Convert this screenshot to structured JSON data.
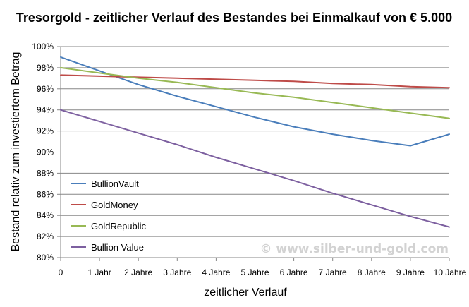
{
  "chart_data": {
    "type": "line",
    "title": "Tresorgold - zeitlicher Verlauf des Bestandes bei Einmalkauf von € 5.000",
    "xlabel": "zeitlicher Verlauf",
    "ylabel": "Bestand relativ zum investiertem Betrag",
    "categories": [
      "0",
      "1 Jahr",
      "2 Jahre",
      "3 Jahre",
      "4 Jahre",
      "5 Jahre",
      "6 Jahre",
      "7 Jahre",
      "8 Jahre",
      "9 Jahre",
      "10 Jahre"
    ],
    "x": [
      0,
      1,
      2,
      3,
      4,
      5,
      6,
      7,
      8,
      9,
      10
    ],
    "ylim": [
      80,
      100
    ],
    "ytick_step": 2,
    "ytick_labels": [
      "80%",
      "82%",
      "84%",
      "86%",
      "88%",
      "90%",
      "92%",
      "94%",
      "96%",
      "98%",
      "100%"
    ],
    "grid": "horizontal",
    "legend_position": "inside-bottom-left",
    "series": [
      {
        "name": "BullionVault",
        "color": "#4a7ebb",
        "values": [
          99.0,
          97.7,
          96.4,
          95.3,
          94.3,
          93.3,
          92.4,
          91.7,
          91.1,
          90.6,
          91.7
        ]
      },
      {
        "name": "GoldMoney",
        "color": "#be4b48",
        "values": [
          97.3,
          97.2,
          97.1,
          97.0,
          96.9,
          96.8,
          96.7,
          96.5,
          96.4,
          96.2,
          96.1
        ]
      },
      {
        "name": "GoldRepublic",
        "color": "#98b954",
        "values": [
          98.0,
          97.5,
          97.0,
          96.6,
          96.1,
          95.6,
          95.2,
          94.7,
          94.2,
          93.7,
          93.2
        ]
      },
      {
        "name": "Bullion Value",
        "color": "#7d60a0",
        "values": [
          94.0,
          92.9,
          91.8,
          90.7,
          89.5,
          88.4,
          87.3,
          86.1,
          85.0,
          83.9,
          82.9
        ]
      }
    ]
  },
  "watermark": "© www.silber-und-gold.com"
}
